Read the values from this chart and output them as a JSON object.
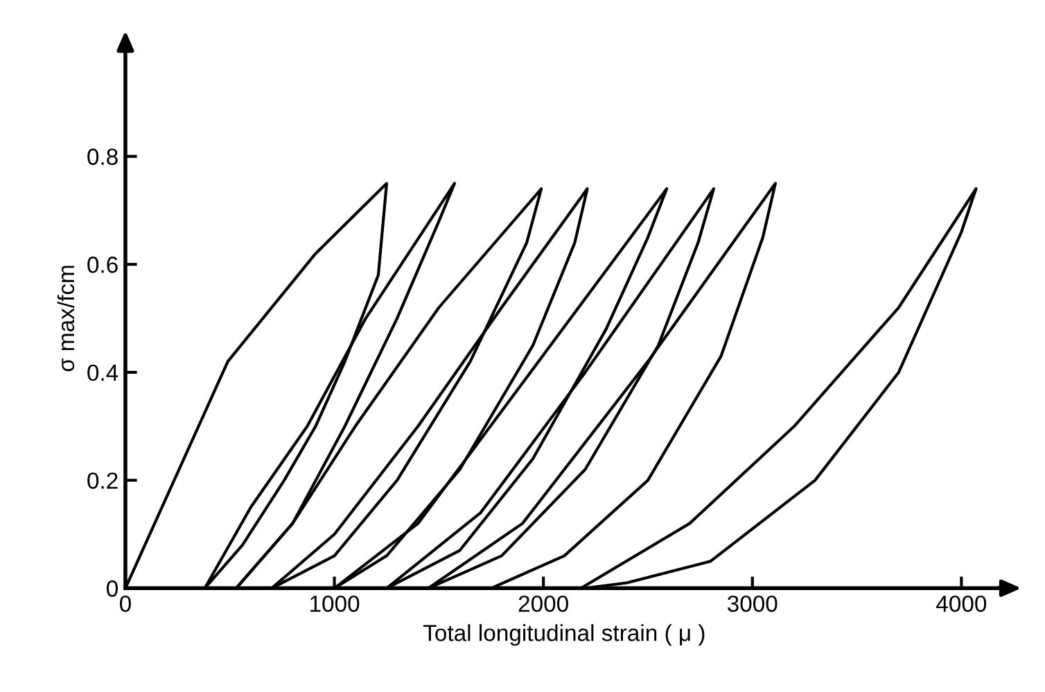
{
  "chart_data": {
    "type": "line",
    "xlabel": "Total longitudinal strain ( μ )",
    "ylabel": "σ max/fcm",
    "xlim": [
      0,
      4200
    ],
    "ylim": [
      0,
      1.0
    ],
    "xticks": [
      0,
      1000,
      2000,
      3000,
      4000
    ],
    "yticks": [
      0,
      0.2,
      0.4,
      0.6,
      0.8
    ],
    "grid": false,
    "marker": "none",
    "line_style": "solid",
    "series": [
      {
        "color": "#000000",
        "x": [
          0,
          210,
          490,
          910,
          1250,
          1210,
          1050,
          910,
          760,
          560,
          380
        ],
        "values": [
          0,
          0.18,
          0.42,
          0.62,
          0.75,
          0.58,
          0.42,
          0.3,
          0.2,
          0.08,
          0
        ]
      },
      {
        "color": "#000000",
        "x": [
          380,
          600,
          870,
          1150,
          1575,
          1500,
          1300,
          1050,
          800,
          530
        ],
        "values": [
          0,
          0.15,
          0.3,
          0.5,
          0.75,
          0.68,
          0.5,
          0.3,
          0.12,
          0
        ]
      },
      {
        "color": "#000000",
        "x": [
          530,
          800,
          1100,
          1500,
          1990,
          1920,
          1650,
          1300,
          1000,
          700
        ],
        "values": [
          0,
          0.12,
          0.3,
          0.52,
          0.74,
          0.64,
          0.42,
          0.2,
          0.06,
          0
        ]
      },
      {
        "color": "#000000",
        "x": [
          700,
          1000,
          1400,
          1800,
          2210,
          2150,
          1950,
          1600,
          1250,
          1000
        ],
        "values": [
          0,
          0.1,
          0.3,
          0.52,
          0.74,
          0.64,
          0.45,
          0.22,
          0.06,
          0
        ]
      },
      {
        "color": "#000000",
        "x": [
          1000,
          1400,
          1900,
          2590,
          2500,
          2300,
          1950,
          1600,
          1250
        ],
        "values": [
          0,
          0.12,
          0.38,
          0.74,
          0.65,
          0.48,
          0.24,
          0.07,
          0
        ]
      },
      {
        "color": "#000000",
        "x": [
          1250,
          1700,
          2200,
          2815,
          2740,
          2550,
          2200,
          1800,
          1450
        ],
        "values": [
          0,
          0.14,
          0.4,
          0.74,
          0.64,
          0.45,
          0.22,
          0.06,
          0
        ]
      },
      {
        "color": "#000000",
        "x": [
          1450,
          1900,
          2500,
          3110,
          3050,
          2850,
          2500,
          2100,
          1750
        ],
        "values": [
          0,
          0.12,
          0.42,
          0.75,
          0.65,
          0.43,
          0.2,
          0.06,
          0
        ]
      },
      {
        "color": "#000000",
        "x": [
          2180,
          2700,
          3200,
          3700,
          4070,
          4000,
          3700,
          3300,
          2800,
          2400,
          2200
        ],
        "values": [
          0,
          0.12,
          0.3,
          0.52,
          0.74,
          0.66,
          0.4,
          0.2,
          0.05,
          0.01,
          0
        ]
      }
    ]
  }
}
